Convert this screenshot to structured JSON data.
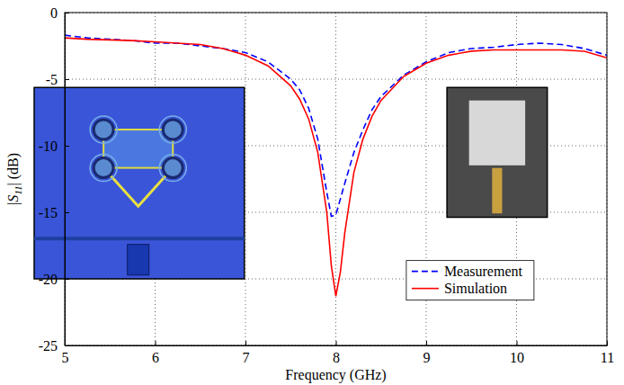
{
  "chart_data": {
    "type": "line",
    "x_label": "Frequency (GHz)",
    "y_label": "|S11| (dB)",
    "x": [
      5,
      5.25,
      5.5,
      5.75,
      6,
      6.25,
      6.5,
      6.75,
      7,
      7.25,
      7.5,
      7.6,
      7.7,
      7.8,
      7.9,
      7.95,
      8.0,
      8.05,
      8.1,
      8.2,
      8.3,
      8.4,
      8.5,
      8.75,
      9,
      9.25,
      9.5,
      9.75,
      10,
      10.25,
      10.5,
      10.75,
      11
    ],
    "series": [
      {
        "name": "Measurement",
        "color": "#0000ff",
        "line_style": "dashed",
        "values": [
          -1.7,
          -1.9,
          -2.0,
          -2.1,
          -2.3,
          -2.3,
          -2.5,
          -2.7,
          -3.0,
          -3.7,
          -5.0,
          -5.8,
          -7.2,
          -9.5,
          -13.5,
          -15.3,
          -15.2,
          -14.0,
          -12.8,
          -10.5,
          -8.8,
          -7.3,
          -6.3,
          -4.7,
          -3.7,
          -3.0,
          -2.7,
          -2.6,
          -2.4,
          -2.3,
          -2.4,
          -2.7,
          -3.2
        ]
      },
      {
        "name": "Simulation",
        "color": "#ff0000",
        "line_style": "solid",
        "values": [
          -1.9,
          -2.0,
          -2.05,
          -2.1,
          -2.2,
          -2.3,
          -2.4,
          -2.7,
          -3.2,
          -4.0,
          -5.5,
          -6.5,
          -8.0,
          -10.5,
          -15.0,
          -19.0,
          -21.3,
          -19.5,
          -16.5,
          -12.0,
          -9.5,
          -7.8,
          -6.6,
          -4.8,
          -3.8,
          -3.2,
          -2.9,
          -2.8,
          -2.8,
          -2.8,
          -2.8,
          -2.9,
          -3.4
        ]
      }
    ],
    "xlim": [
      5,
      11
    ],
    "xticks": [
      5,
      6,
      7,
      8,
      9,
      10,
      11
    ],
    "ylim": [
      -25,
      0
    ],
    "yticks": [
      -25,
      -20,
      -15,
      -10,
      -5,
      0
    ],
    "grid": true,
    "legend": "lower right"
  }
}
